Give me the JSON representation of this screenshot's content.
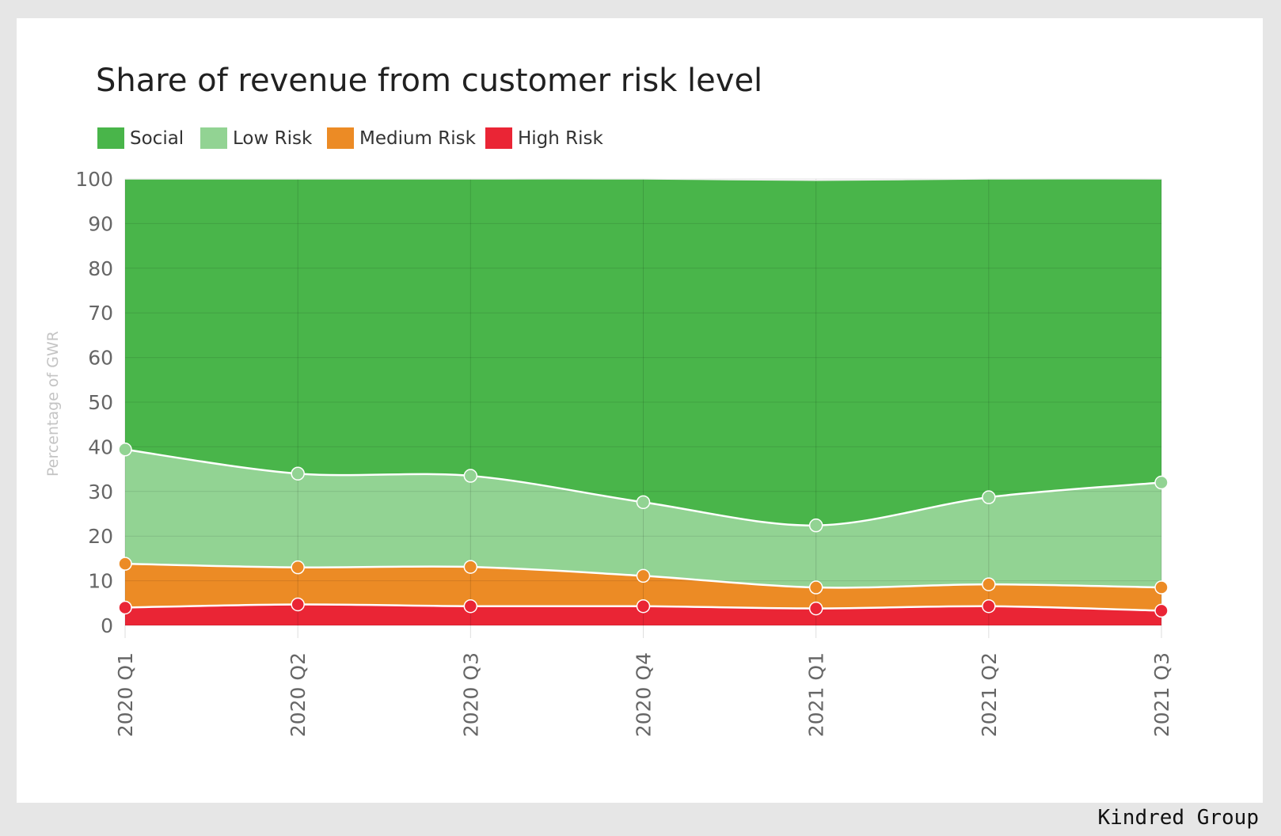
{
  "chart_data": {
    "type": "area",
    "stacked": true,
    "title": "Share of revenue from customer risk level",
    "ylabel": "Percentage of GWR",
    "xlabel": "",
    "categories": [
      "2020 Q1",
      "2020 Q2",
      "2020 Q3",
      "2020 Q4",
      "2021 Q1",
      "2021 Q2",
      "2021 Q3"
    ],
    "ylim": [
      0,
      100
    ],
    "yticks": [
      0,
      10,
      20,
      30,
      40,
      50,
      60,
      70,
      80,
      90,
      100
    ],
    "grid": true,
    "legend": "top-left",
    "series": [
      {
        "name": "High Risk",
        "color": "#ea2535",
        "values": [
          4.0,
          4.7,
          4.3,
          4.3,
          3.8,
          4.3,
          3.3
        ]
      },
      {
        "name": "Medium Risk",
        "color": "#ec8b25",
        "values": [
          9.8,
          8.3,
          8.8,
          6.8,
          4.7,
          4.9,
          5.2
        ]
      },
      {
        "name": "Low Risk",
        "color": "#92d393",
        "values": [
          25.6,
          21.0,
          20.4,
          16.5,
          13.9,
          19.5,
          23.5
        ]
      },
      {
        "name": "Social",
        "color": "#49b54a",
        "values": [
          60.6,
          66.0,
          66.5,
          72.4,
          77.3,
          71.3,
          68.0
        ]
      }
    ],
    "legend_order": [
      "Social",
      "Low Risk",
      "Medium Risk",
      "High Risk"
    ]
  },
  "source": "Kindred Group"
}
